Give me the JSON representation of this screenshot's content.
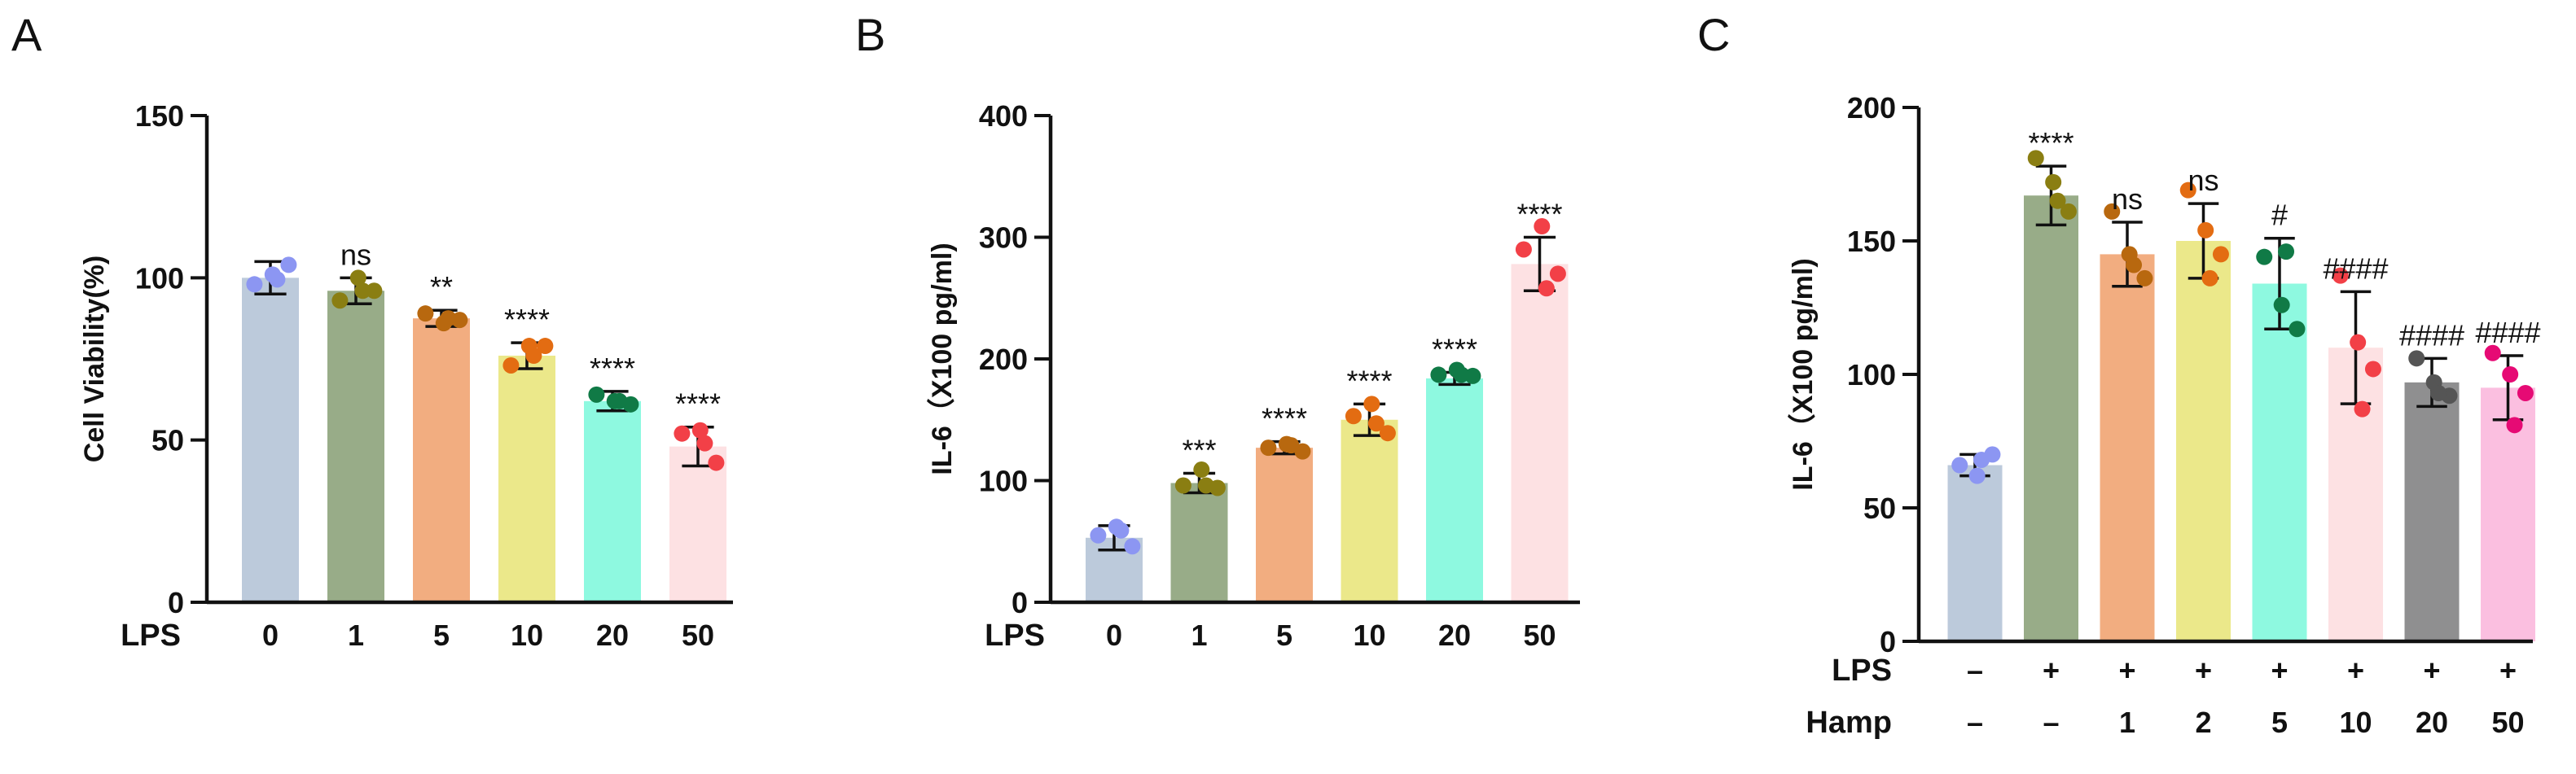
{
  "chart_data": [
    {
      "type": "bar",
      "panel_label": "A",
      "ylabel": "Cell Viability(%)",
      "ylim": [
        0,
        150
      ],
      "yticks": [
        0,
        50,
        100,
        150
      ],
      "row_labels": [
        "LPS"
      ],
      "categories": [
        [
          "0"
        ],
        [
          "1"
        ],
        [
          "5"
        ],
        [
          "10"
        ],
        [
          "20"
        ],
        [
          "50"
        ]
      ],
      "values": [
        100,
        96,
        87.5,
        76,
        62,
        48
      ],
      "errors": [
        5,
        4,
        2.5,
        4,
        3,
        6
      ],
      "significance": [
        "",
        "ns",
        "**",
        "****",
        "****",
        "****"
      ],
      "points": [
        [
          98,
          101,
          104,
          99.5
        ],
        [
          93,
          100,
          96,
          96
        ],
        [
          89,
          86,
          87,
          87.5
        ],
        [
          73,
          79,
          79,
          76
        ],
        [
          64,
          62,
          61,
          62
        ],
        [
          52,
          53,
          43,
          49
        ]
      ],
      "bar_colors": [
        "#bccadb",
        "#98ac88",
        "#f2ad80",
        "#ebe88a",
        "#8ef9e0",
        "#fde1e3"
      ],
      "point_colors": [
        "#8c96f2",
        "#8a7e12",
        "#b8680f",
        "#e36c12",
        "#107a46",
        "#f24047"
      ],
      "grid": false
    },
    {
      "type": "bar",
      "panel_label": "B",
      "ylabel": "IL-6（X100 pg/ml)",
      "ylim": [
        0,
        400
      ],
      "yticks": [
        0,
        100,
        200,
        300,
        400
      ],
      "row_labels": [
        "LPS"
      ],
      "categories": [
        [
          "0"
        ],
        [
          "1"
        ],
        [
          "5"
        ],
        [
          "10"
        ],
        [
          "20"
        ],
        [
          "50"
        ]
      ],
      "values": [
        53,
        98,
        127,
        150,
        184,
        278
      ],
      "errors": [
        10,
        8,
        5,
        13,
        5,
        22
      ],
      "significance": [
        "",
        "***",
        "****",
        "****",
        "****",
        "****"
      ],
      "points": [
        [
          55,
          62,
          46,
          59
        ],
        [
          96,
          109,
          94,
          96
        ],
        [
          127,
          130,
          124,
          129
        ],
        [
          153,
          163,
          139,
          147
        ],
        [
          187,
          191,
          186,
          187
        ],
        [
          290,
          309,
          270,
          258
        ]
      ],
      "bar_colors": [
        "#bccadb",
        "#98ac88",
        "#f2ad80",
        "#ebe88a",
        "#8ef9e0",
        "#fde1e3"
      ],
      "point_colors": [
        "#8c96f2",
        "#8a7e12",
        "#b8680f",
        "#e36c12",
        "#107a46",
        "#f24047"
      ],
      "grid": false
    },
    {
      "type": "bar",
      "panel_label": "C",
      "ylabel": "IL-6（X100 pg/ml)",
      "ylim": [
        0,
        200
      ],
      "yticks": [
        0,
        50,
        100,
        150,
        200
      ],
      "row_labels": [
        "LPS",
        "Hamp"
      ],
      "categories": [
        [
          "–",
          "–"
        ],
        [
          "+",
          "–"
        ],
        [
          "+",
          "1"
        ],
        [
          "+",
          "2"
        ],
        [
          "+",
          "5"
        ],
        [
          "+",
          "10"
        ],
        [
          "+",
          "20"
        ],
        [
          "+",
          "50"
        ]
      ],
      "values": [
        66,
        167,
        145,
        150,
        134,
        110,
        97,
        95
      ],
      "errors": [
        4,
        11,
        12,
        14,
        17,
        21,
        9,
        12
      ],
      "significance": [
        "",
        "****",
        "ns",
        "ns",
        "#",
        "####",
        "####",
        "####"
      ],
      "points": [
        [
          66,
          62,
          70,
          68
        ],
        [
          181,
          172,
          161,
          165
        ],
        [
          161,
          145,
          136,
          141
        ],
        [
          169,
          154,
          145,
          136
        ],
        [
          144,
          126,
          117,
          146
        ],
        [
          137,
          112,
          102,
          87
        ],
        [
          106,
          97,
          92,
          93
        ],
        [
          108,
          100,
          93,
          81
        ]
      ],
      "bar_colors": [
        "#bccadb",
        "#98ac88",
        "#f2ad80",
        "#ebe88a",
        "#8ef9e0",
        "#fde1e3",
        "#8f8f90",
        "#fbbfe0"
      ],
      "point_colors": [
        "#8c96f2",
        "#8a7e12",
        "#b8680f",
        "#e36c12",
        "#107a46",
        "#f24047",
        "#555555",
        "#e60a74"
      ],
      "grid": false
    }
  ]
}
